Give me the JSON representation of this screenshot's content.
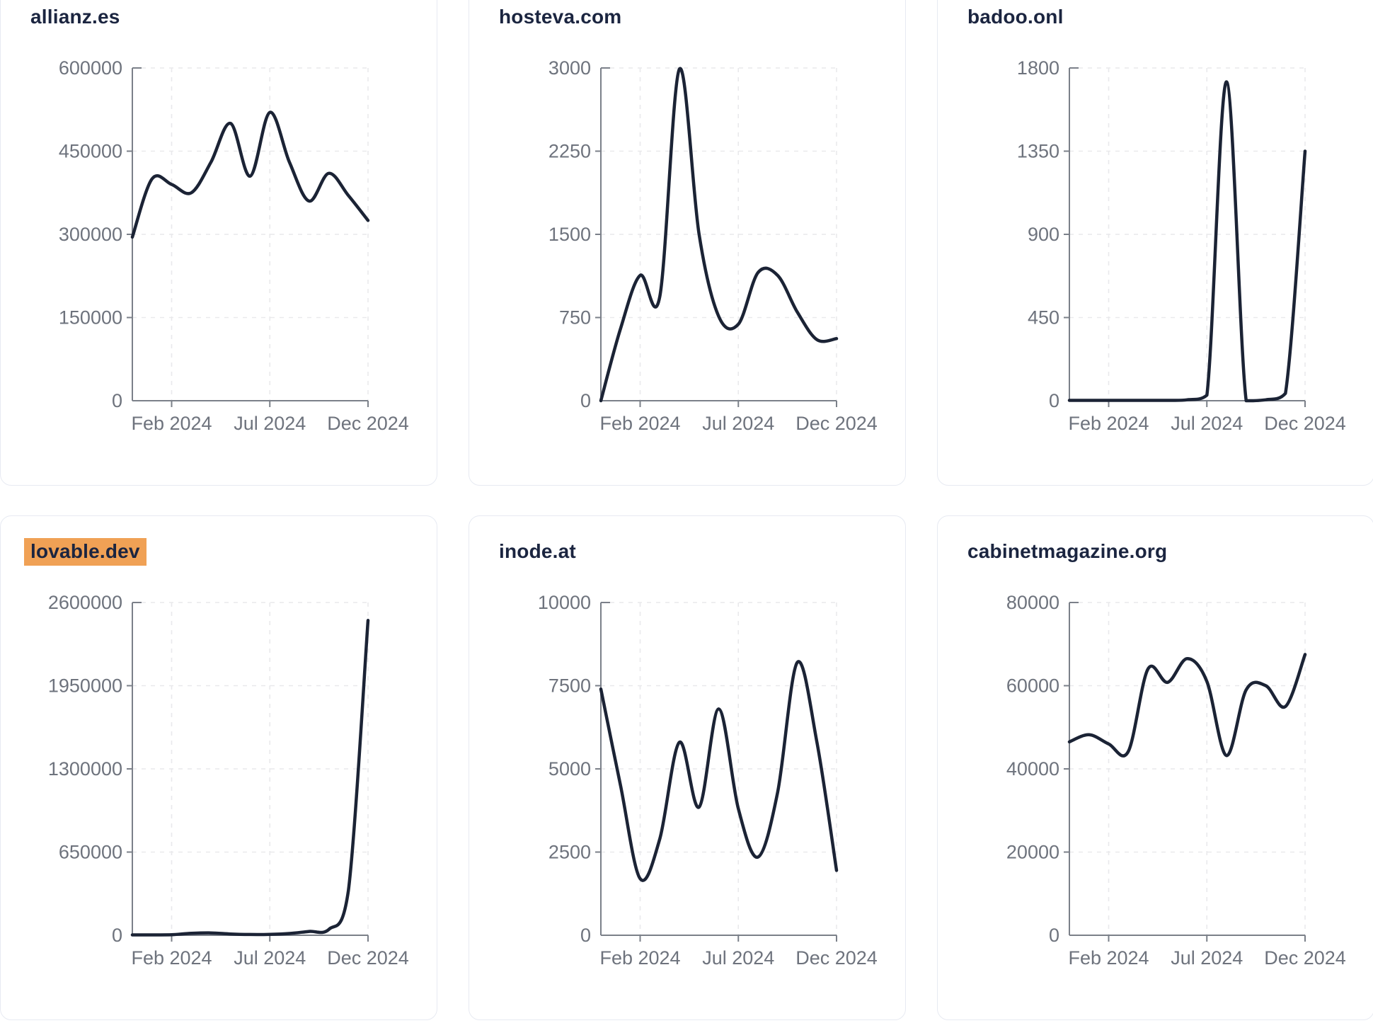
{
  "page": {
    "background": "#ffffff",
    "description": "Grid of six website-traffic sparkline cards, monthly visits Dec 2023 - Dec 2024"
  },
  "colors": {
    "line": "#1b2335",
    "title_text": "#1b2540",
    "highlight_background": "#f0a155",
    "axis": "#7b8089",
    "tick_label": "#6e737d",
    "gridline": "#e9e9ec",
    "card_border": "#e7eaf2"
  },
  "chart_data": {
    "type": "line",
    "x_months": [
      "Dec 2023",
      "Jan 2024",
      "Feb 2024",
      "Mar 2024",
      "Apr 2024",
      "May 2024",
      "Jun 2024",
      "Jul 2024",
      "Aug 2024",
      "Sep 2024",
      "Oct 2024",
      "Nov 2024",
      "Dec 2024"
    ],
    "xticks": [
      {
        "index": 2,
        "label": "Feb 2024"
      },
      {
        "index": 7,
        "label": "Jul 2024"
      },
      {
        "index": 12,
        "label": "Dec 2024"
      }
    ],
    "grid": true,
    "legend": "none",
    "charts": [
      {
        "title": "allianz.es",
        "highlighted": false,
        "ylim": [
          0,
          600000
        ],
        "yticks": [
          0,
          150000,
          300000,
          450000,
          600000
        ],
        "values": [
          295000,
          400000,
          390000,
          375000,
          430000,
          500000,
          405000,
          520000,
          430000,
          360000,
          410000,
          370000,
          325000
        ]
      },
      {
        "title": "hosteva.com",
        "highlighted": false,
        "ylim": [
          0,
          3000
        ],
        "yticks": [
          0,
          750,
          1500,
          2250,
          3000
        ],
        "values": [
          0,
          650,
          1130,
          940,
          2990,
          1500,
          760,
          690,
          1155,
          1130,
          800,
          550,
          560
        ]
      },
      {
        "title": "badoo.onl",
        "highlighted": false,
        "ylim": [
          0,
          1800
        ],
        "yticks": [
          0,
          450,
          900,
          1350,
          1800
        ],
        "values": [
          2,
          2,
          2,
          2,
          2,
          2,
          5,
          30,
          1725,
          0,
          5,
          40,
          1350
        ]
      },
      {
        "title": "lovable.dev",
        "highlighted": true,
        "ylim": [
          0,
          2600000
        ],
        "yticks": [
          0,
          650000,
          1300000,
          1950000,
          2600000
        ],
        "values": [
          3000,
          3000,
          4000,
          15000,
          18000,
          10000,
          6000,
          7000,
          14000,
          30000,
          45000,
          350000,
          2460000
        ]
      },
      {
        "title": "inode.at",
        "highlighted": false,
        "ylim": [
          0,
          10000
        ],
        "yticks": [
          0,
          2500,
          5000,
          7500,
          10000
        ],
        "values": [
          7400,
          4500,
          1700,
          2900,
          5800,
          3850,
          6800,
          3800,
          2350,
          4300,
          8200,
          5800,
          1950
        ]
      },
      {
        "title": "cabinetmagazine.org",
        "highlighted": false,
        "ylim": [
          0,
          80000
        ],
        "yticks": [
          0,
          20000,
          40000,
          60000,
          80000
        ],
        "values": [
          46500,
          48200,
          46000,
          44200,
          64000,
          60800,
          66500,
          61000,
          43200,
          59000,
          60000,
          55000,
          67500
        ]
      }
    ]
  }
}
